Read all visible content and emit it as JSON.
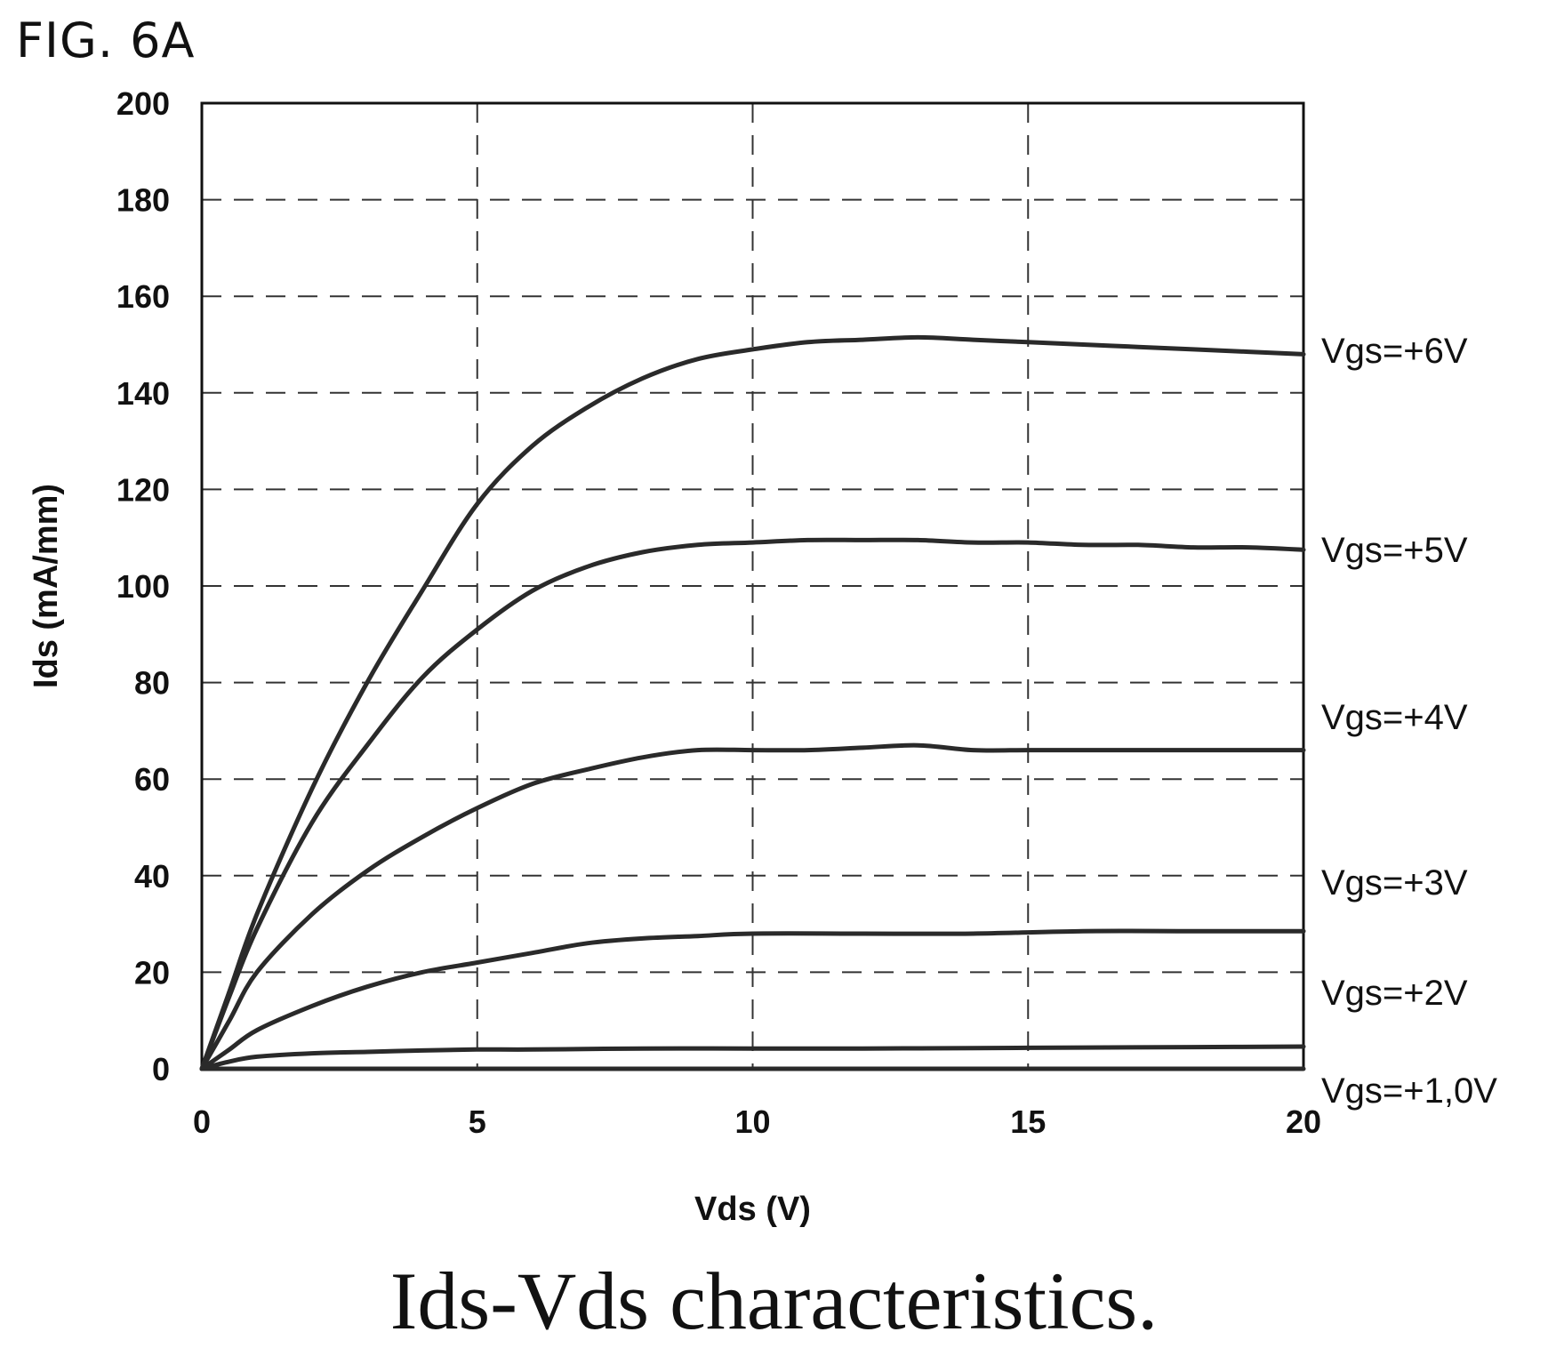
{
  "figure_label": "FIG. 6A",
  "caption": "Ids-Vds characteristics.",
  "chart_data": {
    "type": "line",
    "title": "",
    "xlabel": "Vds (V)",
    "ylabel": "Ids (mA/mm)",
    "xlim": [
      0,
      20
    ],
    "ylim": [
      0,
      200
    ],
    "xticks": [
      "0",
      "5",
      "10",
      "15",
      "20"
    ],
    "yticks": [
      "0",
      "20",
      "40",
      "60",
      "80",
      "100",
      "120",
      "140",
      "160",
      "180",
      "200"
    ],
    "grid": true,
    "grid_style": "dashed",
    "line_color": "#2a2a2a",
    "series": [
      {
        "name": "Vgs=+6V",
        "x": [
          0,
          0.5,
          1,
          2,
          3,
          4,
          5,
          6,
          7,
          8,
          9,
          10,
          11,
          12,
          13,
          14,
          15,
          16,
          17,
          18,
          19,
          20
        ],
        "y": [
          0,
          16,
          32,
          58,
          80,
          99,
          117,
          129,
          137,
          143,
          147,
          149,
          150.5,
          151,
          151.5,
          151,
          150.5,
          150,
          149.5,
          149,
          148.5,
          148
        ]
      },
      {
        "name": "Vgs=+5V",
        "x": [
          0,
          0.5,
          1,
          2,
          3,
          4,
          5,
          6,
          7,
          8,
          9,
          10,
          11,
          12,
          13,
          14,
          15,
          16,
          17,
          18,
          19,
          20
        ],
        "y": [
          0,
          15,
          29,
          51,
          67,
          81,
          91,
          99,
          104,
          107,
          108.5,
          109,
          109.5,
          109.5,
          109.5,
          109,
          109,
          108.5,
          108.5,
          108,
          108,
          107.5
        ]
      },
      {
        "name": "Vgs=+4V",
        "x": [
          0,
          0.5,
          1,
          2,
          3,
          4,
          5,
          6,
          7,
          8,
          9,
          10,
          11,
          12,
          13,
          14,
          15,
          16,
          17,
          18,
          19,
          20
        ],
        "y": [
          0,
          10,
          20,
          32,
          41,
          48,
          54,
          59,
          62,
          64.5,
          66,
          66,
          66,
          66.5,
          67,
          66,
          66,
          66,
          66,
          66,
          66,
          66
        ]
      },
      {
        "name": "Vgs=+3V",
        "x": [
          0,
          0.5,
          1,
          2,
          3,
          4,
          5,
          6,
          7,
          8,
          9,
          10,
          12,
          14,
          16,
          18,
          20
        ],
        "y": [
          0,
          4,
          8,
          13,
          17,
          20,
          22,
          24,
          26,
          27,
          27.5,
          28,
          28,
          28,
          28.5,
          28.5,
          28.5
        ]
      },
      {
        "name": "Vgs=+2V",
        "x": [
          0,
          0.5,
          1,
          2,
          3,
          4,
          5,
          6,
          8,
          10,
          12,
          14,
          16,
          18,
          20
        ],
        "y": [
          0,
          1.5,
          2.5,
          3.2,
          3.5,
          3.8,
          4,
          4,
          4.2,
          4.2,
          4.2,
          4.3,
          4.4,
          4.5,
          4.6
        ]
      },
      {
        "name": "Vgs=+1,0V",
        "x": [
          0,
          2,
          5,
          10,
          15,
          20
        ],
        "y": [
          0,
          0,
          0,
          0,
          0,
          0
        ]
      }
    ]
  }
}
